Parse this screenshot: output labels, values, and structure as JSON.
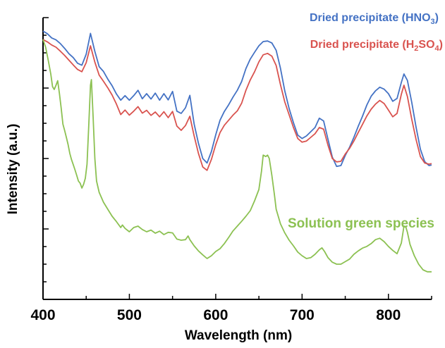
{
  "chart_data": {
    "type": "line",
    "title": "",
    "xlabel": "Wavelength (nm)",
    "ylabel": "Intensity (a.u.)",
    "xlim": [
      400,
      850
    ],
    "ylim": [
      0,
      1
    ],
    "x_ticks": [
      400,
      500,
      600,
      700,
      800
    ],
    "y_ticks_labeled": false,
    "grid": false,
    "legend_position": "top-right",
    "series": [
      {
        "name_parts": [
          "Dried precipitate (HNO",
          "3",
          ")"
        ],
        "color": "#4472c4",
        "points": [
          [
            400,
            0.952
          ],
          [
            405,
            0.943
          ],
          [
            410,
            0.928
          ],
          [
            415,
            0.921
          ],
          [
            420,
            0.908
          ],
          [
            425,
            0.891
          ],
          [
            430,
            0.872
          ],
          [
            435,
            0.858
          ],
          [
            440,
            0.838
          ],
          [
            445,
            0.831
          ],
          [
            450,
            0.87
          ],
          [
            455,
            0.944
          ],
          [
            460,
            0.88
          ],
          [
            465,
            0.826
          ],
          [
            470,
            0.809
          ],
          [
            475,
            0.782
          ],
          [
            480,
            0.758
          ],
          [
            485,
            0.729
          ],
          [
            490,
            0.707
          ],
          [
            495,
            0.723
          ],
          [
            500,
            0.707
          ],
          [
            505,
            0.723
          ],
          [
            510,
            0.742
          ],
          [
            515,
            0.712
          ],
          [
            520,
            0.73
          ],
          [
            525,
            0.711
          ],
          [
            530,
            0.732
          ],
          [
            535,
            0.707
          ],
          [
            540,
            0.73
          ],
          [
            545,
            0.708
          ],
          [
            550,
            0.738
          ],
          [
            555,
            0.668
          ],
          [
            560,
            0.66
          ],
          [
            565,
            0.68
          ],
          [
            570,
            0.724
          ],
          [
            575,
            0.622
          ],
          [
            580,
            0.554
          ],
          [
            585,
            0.5
          ],
          [
            590,
            0.484
          ],
          [
            595,
            0.525
          ],
          [
            600,
            0.584
          ],
          [
            605,
            0.636
          ],
          [
            610,
            0.667
          ],
          [
            615,
            0.691
          ],
          [
            620,
            0.718
          ],
          [
            625,
            0.742
          ],
          [
            630,
            0.773
          ],
          [
            635,
            0.819
          ],
          [
            640,
            0.853
          ],
          [
            645,
            0.877
          ],
          [
            650,
            0.9
          ],
          [
            655,
            0.915
          ],
          [
            660,
            0.917
          ],
          [
            665,
            0.91
          ],
          [
            670,
            0.884
          ],
          [
            675,
            0.82
          ],
          [
            680,
            0.74
          ],
          [
            685,
            0.677
          ],
          [
            690,
            0.627
          ],
          [
            695,
            0.583
          ],
          [
            700,
            0.571
          ],
          [
            705,
            0.58
          ],
          [
            710,
            0.595
          ],
          [
            715,
            0.61
          ],
          [
            720,
            0.643
          ],
          [
            725,
            0.633
          ],
          [
            730,
            0.568
          ],
          [
            735,
            0.505
          ],
          [
            740,
            0.472
          ],
          [
            745,
            0.475
          ],
          [
            750,
            0.511
          ],
          [
            755,
            0.54
          ],
          [
            760,
            0.575
          ],
          [
            765,
            0.614
          ],
          [
            770,
            0.65
          ],
          [
            775,
            0.69
          ],
          [
            780,
            0.721
          ],
          [
            785,
            0.74
          ],
          [
            790,
            0.753
          ],
          [
            795,
            0.746
          ],
          [
            800,
            0.73
          ],
          [
            805,
            0.703
          ],
          [
            810,
            0.713
          ],
          [
            815,
            0.77
          ],
          [
            818,
            0.8
          ],
          [
            822,
            0.777
          ],
          [
            827,
            0.7
          ],
          [
            832,
            0.611
          ],
          [
            837,
            0.533
          ],
          [
            842,
            0.489
          ],
          [
            847,
            0.475
          ],
          [
            850,
            0.477
          ]
        ]
      },
      {
        "name_parts": [
          "Dried precipitate (H",
          "2",
          "SO",
          "4",
          ")"
        ],
        "color": "#d9534f",
        "points": [
          [
            400,
            0.922
          ],
          [
            405,
            0.914
          ],
          [
            410,
            0.903
          ],
          [
            415,
            0.895
          ],
          [
            420,
            0.881
          ],
          [
            425,
            0.866
          ],
          [
            430,
            0.849
          ],
          [
            435,
            0.832
          ],
          [
            440,
            0.816
          ],
          [
            445,
            0.808
          ],
          [
            450,
            0.84
          ],
          [
            455,
            0.9
          ],
          [
            460,
            0.842
          ],
          [
            465,
            0.796
          ],
          [
            470,
            0.774
          ],
          [
            475,
            0.751
          ],
          [
            480,
            0.725
          ],
          [
            485,
            0.693
          ],
          [
            490,
            0.656
          ],
          [
            495,
            0.672
          ],
          [
            500,
            0.654
          ],
          [
            505,
            0.668
          ],
          [
            510,
            0.684
          ],
          [
            515,
            0.661
          ],
          [
            520,
            0.671
          ],
          [
            525,
            0.653
          ],
          [
            530,
            0.665
          ],
          [
            535,
            0.648
          ],
          [
            540,
            0.666
          ],
          [
            545,
            0.645
          ],
          [
            550,
            0.667
          ],
          [
            555,
            0.615
          ],
          [
            560,
            0.6
          ],
          [
            565,
            0.617
          ],
          [
            570,
            0.65
          ],
          [
            575,
            0.58
          ],
          [
            580,
            0.518
          ],
          [
            585,
            0.47
          ],
          [
            590,
            0.458
          ],
          [
            595,
            0.497
          ],
          [
            600,
            0.549
          ],
          [
            605,
            0.592
          ],
          [
            610,
            0.618
          ],
          [
            615,
            0.636
          ],
          [
            620,
            0.654
          ],
          [
            625,
            0.669
          ],
          [
            630,
            0.696
          ],
          [
            635,
            0.742
          ],
          [
            640,
            0.779
          ],
          [
            645,
            0.808
          ],
          [
            650,
            0.843
          ],
          [
            655,
            0.868
          ],
          [
            660,
            0.873
          ],
          [
            665,
            0.863
          ],
          [
            670,
            0.83
          ],
          [
            675,
            0.762
          ],
          [
            680,
            0.701
          ],
          [
            685,
            0.655
          ],
          [
            690,
            0.61
          ],
          [
            695,
            0.571
          ],
          [
            700,
            0.558
          ],
          [
            705,
            0.562
          ],
          [
            710,
            0.575
          ],
          [
            715,
            0.588
          ],
          [
            720,
            0.61
          ],
          [
            725,
            0.604
          ],
          [
            730,
            0.547
          ],
          [
            735,
            0.5
          ],
          [
            740,
            0.488
          ],
          [
            745,
            0.49
          ],
          [
            750,
            0.516
          ],
          [
            755,
            0.536
          ],
          [
            760,
            0.562
          ],
          [
            765,
            0.592
          ],
          [
            770,
            0.621
          ],
          [
            775,
            0.651
          ],
          [
            780,
            0.675
          ],
          [
            785,
            0.693
          ],
          [
            790,
            0.706
          ],
          [
            795,
            0.695
          ],
          [
            800,
            0.672
          ],
          [
            805,
            0.648
          ],
          [
            810,
            0.66
          ],
          [
            815,
            0.728
          ],
          [
            818,
            0.76
          ],
          [
            822,
            0.72
          ],
          [
            827,
            0.64
          ],
          [
            832,
            0.567
          ],
          [
            837,
            0.507
          ],
          [
            842,
            0.484
          ],
          [
            847,
            0.48
          ],
          [
            850,
            0.482
          ]
        ]
      },
      {
        "name": "Solution green species",
        "color": "#8cc152",
        "points": [
          [
            400,
            0.922
          ],
          [
            403,
            0.895
          ],
          [
            406,
            0.85
          ],
          [
            409,
            0.8
          ],
          [
            411,
            0.755
          ],
          [
            413,
            0.745
          ],
          [
            415,
            0.76
          ],
          [
            417,
            0.776
          ],
          [
            419,
            0.73
          ],
          [
            421,
            0.68
          ],
          [
            423,
            0.622
          ],
          [
            425,
            0.6
          ],
          [
            427,
            0.575
          ],
          [
            429,
            0.55
          ],
          [
            431,
            0.518
          ],
          [
            433,
            0.496
          ],
          [
            435,
            0.478
          ],
          [
            437,
            0.46
          ],
          [
            439,
            0.44
          ],
          [
            441,
            0.42
          ],
          [
            443,
            0.412
          ],
          [
            445,
            0.395
          ],
          [
            447,
            0.408
          ],
          [
            449,
            0.43
          ],
          [
            451,
            0.48
          ],
          [
            453,
            0.62
          ],
          [
            455,
            0.76
          ],
          [
            456,
            0.78
          ],
          [
            458,
            0.65
          ],
          [
            460,
            0.5
          ],
          [
            462,
            0.42
          ],
          [
            465,
            0.38
          ],
          [
            470,
            0.345
          ],
          [
            475,
            0.32
          ],
          [
            480,
            0.295
          ],
          [
            485,
            0.276
          ],
          [
            490,
            0.255
          ],
          [
            492,
            0.264
          ],
          [
            495,
            0.252
          ],
          [
            500,
            0.24
          ],
          [
            505,
            0.255
          ],
          [
            510,
            0.26
          ],
          [
            515,
            0.248
          ],
          [
            520,
            0.24
          ],
          [
            525,
            0.246
          ],
          [
            530,
            0.235
          ],
          [
            535,
            0.242
          ],
          [
            540,
            0.23
          ],
          [
            545,
            0.238
          ],
          [
            550,
            0.236
          ],
          [
            555,
            0.214
          ],
          [
            560,
            0.21
          ],
          [
            565,
            0.212
          ],
          [
            568,
            0.225
          ],
          [
            570,
            0.212
          ],
          [
            575,
            0.19
          ],
          [
            580,
            0.172
          ],
          [
            585,
            0.158
          ],
          [
            590,
            0.145
          ],
          [
            595,
            0.155
          ],
          [
            600,
            0.17
          ],
          [
            605,
            0.18
          ],
          [
            610,
            0.198
          ],
          [
            615,
            0.22
          ],
          [
            620,
            0.243
          ],
          [
            625,
            0.26
          ],
          [
            630,
            0.277
          ],
          [
            635,
            0.295
          ],
          [
            640,
            0.315
          ],
          [
            645,
            0.35
          ],
          [
            650,
            0.39
          ],
          [
            653,
            0.455
          ],
          [
            655,
            0.512
          ],
          [
            658,
            0.507
          ],
          [
            660,
            0.512
          ],
          [
            662,
            0.5
          ],
          [
            665,
            0.44
          ],
          [
            668,
            0.37
          ],
          [
            670,
            0.32
          ],
          [
            675,
            0.268
          ],
          [
            680,
            0.236
          ],
          [
            685,
            0.21
          ],
          [
            690,
            0.19
          ],
          [
            695,
            0.168
          ],
          [
            700,
            0.155
          ],
          [
            705,
            0.145
          ],
          [
            710,
            0.148
          ],
          [
            715,
            0.16
          ],
          [
            720,
            0.176
          ],
          [
            723,
            0.183
          ],
          [
            726,
            0.17
          ],
          [
            730,
            0.148
          ],
          [
            735,
            0.132
          ],
          [
            740,
            0.125
          ],
          [
            745,
            0.125
          ],
          [
            750,
            0.134
          ],
          [
            755,
            0.143
          ],
          [
            760,
            0.16
          ],
          [
            765,
            0.172
          ],
          [
            770,
            0.182
          ],
          [
            775,
            0.188
          ],
          [
            780,
            0.198
          ],
          [
            785,
            0.212
          ],
          [
            790,
            0.217
          ],
          [
            795,
            0.205
          ],
          [
            800,
            0.188
          ],
          [
            805,
            0.174
          ],
          [
            810,
            0.162
          ],
          [
            815,
            0.2
          ],
          [
            818,
            0.26
          ],
          [
            820,
            0.258
          ],
          [
            822,
            0.238
          ],
          [
            825,
            0.195
          ],
          [
            830,
            0.155
          ],
          [
            835,
            0.125
          ],
          [
            840,
            0.105
          ],
          [
            845,
            0.098
          ],
          [
            850,
            0.098
          ]
        ]
      }
    ]
  },
  "labels": {
    "legend_hno3": [
      "Dried precipitate (HNO",
      "3",
      ")"
    ],
    "legend_h2so4": [
      "Dried precipitate (H",
      "2",
      "SO",
      "4",
      ")"
    ],
    "green": "Solution green species"
  }
}
